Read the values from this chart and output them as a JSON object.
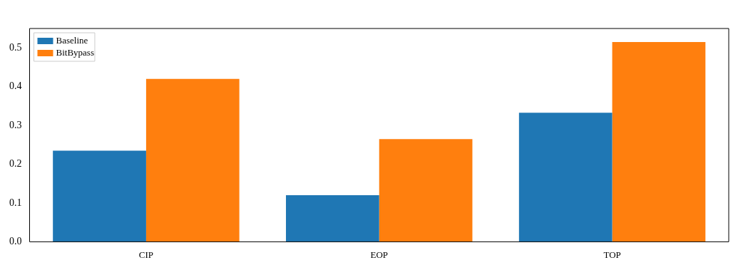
{
  "chart_data": {
    "type": "bar",
    "categories": [
      "CIP",
      "EOP",
      "TOP"
    ],
    "series": [
      {
        "name": "Baseline",
        "color": "#1f77b4",
        "values": [
          0.235,
          0.12,
          0.333
        ]
      },
      {
        "name": "BitBypass",
        "color": "#ff7f0e",
        "values": [
          0.42,
          0.265,
          0.515
        ]
      }
    ],
    "ylim": [
      0,
      0.55
    ],
    "yticks": [
      {
        "value": 0,
        "label": "0.0"
      },
      0.1,
      0.2,
      0.3,
      0.4,
      0.5
    ],
    "legend": "top left",
    "grid": false
  }
}
